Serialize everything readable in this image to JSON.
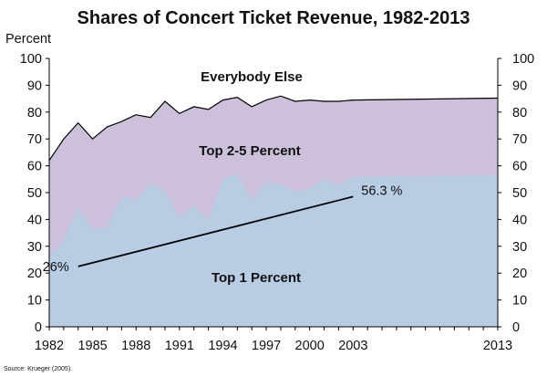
{
  "chart_data": {
    "type": "area",
    "title": "Shares of Concert Ticket Revenue, 1982-2013",
    "ylabel": "Percent",
    "xlim": [
      1982,
      2013
    ],
    "ylim": [
      0,
      100
    ],
    "yticks": [
      0,
      10,
      20,
      30,
      40,
      50,
      60,
      70,
      80,
      90,
      100
    ],
    "xticks": [
      1982,
      1985,
      1988,
      1991,
      1994,
      1997,
      2000,
      2003,
      2013
    ],
    "x": [
      1982,
      1983,
      1984,
      1985,
      1986,
      1987,
      1988,
      1989,
      1990,
      1991,
      1992,
      1993,
      1994,
      1995,
      1996,
      1997,
      1998,
      1999,
      2000,
      2001,
      2002,
      2003,
      2013
    ],
    "series": [
      {
        "name": "Top 1 Percent",
        "color": "#b8cce4",
        "values": [
          26,
          32,
          44.5,
          36.5,
          37,
          48.5,
          47,
          53.5,
          50.5,
          40.5,
          45.5,
          40,
          55,
          57,
          47,
          54,
          53,
          50.5,
          51.5,
          55,
          52.5,
          55.8,
          56.5
        ]
      },
      {
        "name": "Top 2-5 Percent",
        "color": "#ccc0da",
        "cumulative_values": [
          62,
          70,
          76,
          70,
          74.5,
          76.5,
          79,
          78,
          84,
          79.5,
          82,
          81,
          84.5,
          85.5,
          82,
          84.5,
          86,
          84,
          84.5,
          84,
          84,
          84.5,
          85.2
        ]
      },
      {
        "name": "Everybody Else",
        "color": "#ffffff"
      }
    ],
    "trend_line": {
      "start": {
        "x": 1984,
        "y": 22.5,
        "label": "26%"
      },
      "end": {
        "x": 2003,
        "y": 48.5,
        "label": "56.3 %"
      }
    },
    "source": "Source: Krueger (2005).",
    "outline_color": "#000000",
    "axis_color": "#000000"
  }
}
